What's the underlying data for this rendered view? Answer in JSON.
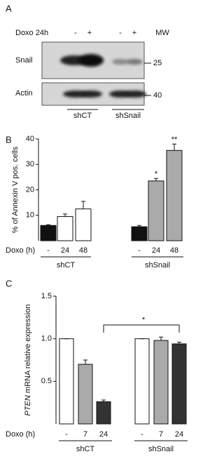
{
  "panel_a": {
    "panel": "A",
    "header": "Doxo 24h",
    "lanes": [
      "-",
      "+",
      "-",
      "+"
    ],
    "mw_header": "MW",
    "rows": [
      {
        "name": "Snail",
        "mw": "25"
      },
      {
        "name": "Actin",
        "mw": "40"
      }
    ],
    "groups": [
      "shCT",
      "shSnail"
    ]
  },
  "chart_data": [
    {
      "type": "bar",
      "panel": "B",
      "ylabel": [
        "% of Annexin V pos. cells"
      ],
      "xlabel": "Doxo (h)",
      "categories": [
        "-",
        "24",
        "48",
        "-",
        "24",
        "48"
      ],
      "groups": [
        "shCT",
        "shSnail"
      ],
      "values": [
        6,
        9.5,
        12.5,
        5.5,
        23.5,
        35.5
      ],
      "errors": [
        0.3,
        1,
        3,
        0.5,
        1,
        2.5
      ],
      "colors": [
        "#111111",
        "#ffffff",
        "#ffffff",
        "#111111",
        "#aaaaaa",
        "#aaaaaa"
      ],
      "annotations": [
        "*",
        "**"
      ],
      "ylim": [
        0,
        40
      ],
      "yticks": [
        10,
        20,
        30,
        40
      ]
    },
    {
      "type": "bar",
      "panel": "C",
      "ylabel": [
        "PTEN",
        "mRNA relative expression"
      ],
      "xlabel": "Doxo (h)",
      "categories": [
        "-",
        "7",
        "24",
        "-",
        "7",
        "24"
      ],
      "groups": [
        "shCT",
        "shSnail"
      ],
      "values": [
        1,
        0.7,
        0.26,
        1,
        0.98,
        0.94
      ],
      "errors": [
        0,
        0.05,
        0.02,
        0,
        0.04,
        0.02
      ],
      "colors": [
        "#ffffff",
        "#aaaaaa",
        "#333333",
        "#ffffff",
        "#aaaaaa",
        "#333333"
      ],
      "annotations": [
        "*"
      ],
      "ylim": [
        0,
        1.5
      ],
      "yticks": [
        0.5,
        {
          "value": 1,
          "label": "1.0"
        },
        1.5
      ]
    }
  ]
}
